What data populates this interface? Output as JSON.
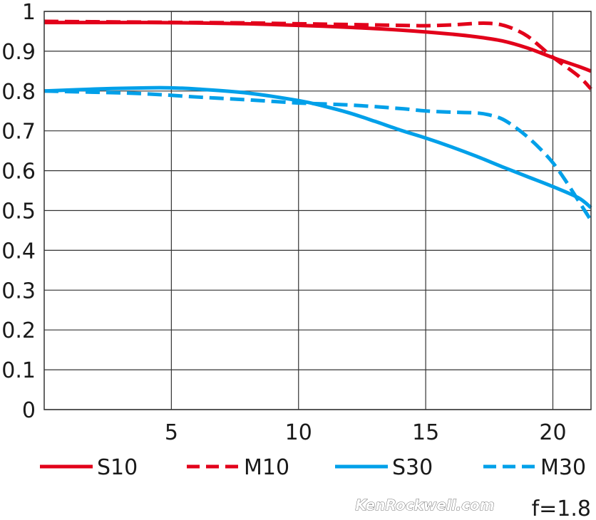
{
  "chart_data": {
    "type": "line",
    "xlim": [
      0,
      21.5
    ],
    "ylim": [
      0,
      1
    ],
    "x_ticks": [
      5,
      10,
      15,
      20
    ],
    "x_tick_labels": [
      "5",
      "10",
      "15",
      "20"
    ],
    "y_ticks": [
      0,
      0.1,
      0.2,
      0.3,
      0.4,
      0.5,
      0.6,
      0.7,
      0.8,
      0.9,
      1
    ],
    "y_tick_labels": [
      "0",
      "0.1",
      "0.2",
      "0.3",
      "0.4",
      "0.5",
      "0.6",
      "0.7",
      "0.8",
      "0.9",
      "1"
    ],
    "grid": true,
    "legend_position": "bottom",
    "series": [
      {
        "name": "S10",
        "color": "#e2001a",
        "style": "solid",
        "x": [
          0,
          2,
          4,
          6,
          8,
          10,
          12,
          14,
          16,
          17,
          18,
          19,
          20,
          21,
          21.5
        ],
        "y": [
          0.972,
          0.972,
          0.972,
          0.971,
          0.969,
          0.965,
          0.96,
          0.953,
          0.943,
          0.936,
          0.926,
          0.908,
          0.884,
          0.862,
          0.85
        ]
      },
      {
        "name": "M10",
        "color": "#e2001a",
        "style": "dashed",
        "x": [
          0,
          2,
          4,
          6,
          8,
          10,
          12,
          14,
          15,
          16,
          17,
          17.5,
          18,
          18.5,
          19,
          19.5,
          20,
          21,
          21.5
        ],
        "y": [
          0.975,
          0.974,
          0.973,
          0.972,
          0.971,
          0.969,
          0.967,
          0.965,
          0.964,
          0.966,
          0.97,
          0.97,
          0.966,
          0.955,
          0.938,
          0.912,
          0.885,
          0.838,
          0.805
        ]
      },
      {
        "name": "S30",
        "color": "#00a0e9",
        "style": "solid",
        "x": [
          0,
          2,
          4,
          5,
          6,
          8,
          10,
          11,
          12,
          13,
          14,
          15,
          16,
          17,
          18,
          19,
          20,
          21,
          21.5
        ],
        "y": [
          0.8,
          0.805,
          0.808,
          0.808,
          0.805,
          0.795,
          0.776,
          0.762,
          0.745,
          0.724,
          0.702,
          0.682,
          0.66,
          0.636,
          0.61,
          0.585,
          0.56,
          0.532,
          0.507
        ]
      },
      {
        "name": "M30",
        "color": "#00a0e9",
        "style": "dashed",
        "x": [
          0,
          2,
          4,
          6,
          8,
          10,
          12,
          14,
          15,
          16,
          17,
          17.5,
          18,
          18.5,
          19,
          19.5,
          20,
          20.5,
          21,
          21.5
        ],
        "y": [
          0.8,
          0.797,
          0.793,
          0.785,
          0.778,
          0.77,
          0.765,
          0.756,
          0.75,
          0.747,
          0.745,
          0.74,
          0.73,
          0.71,
          0.685,
          0.655,
          0.62,
          0.575,
          0.525,
          0.475
        ]
      }
    ],
    "annotation": "f=1.8",
    "watermark": "KenRockwell.com"
  }
}
